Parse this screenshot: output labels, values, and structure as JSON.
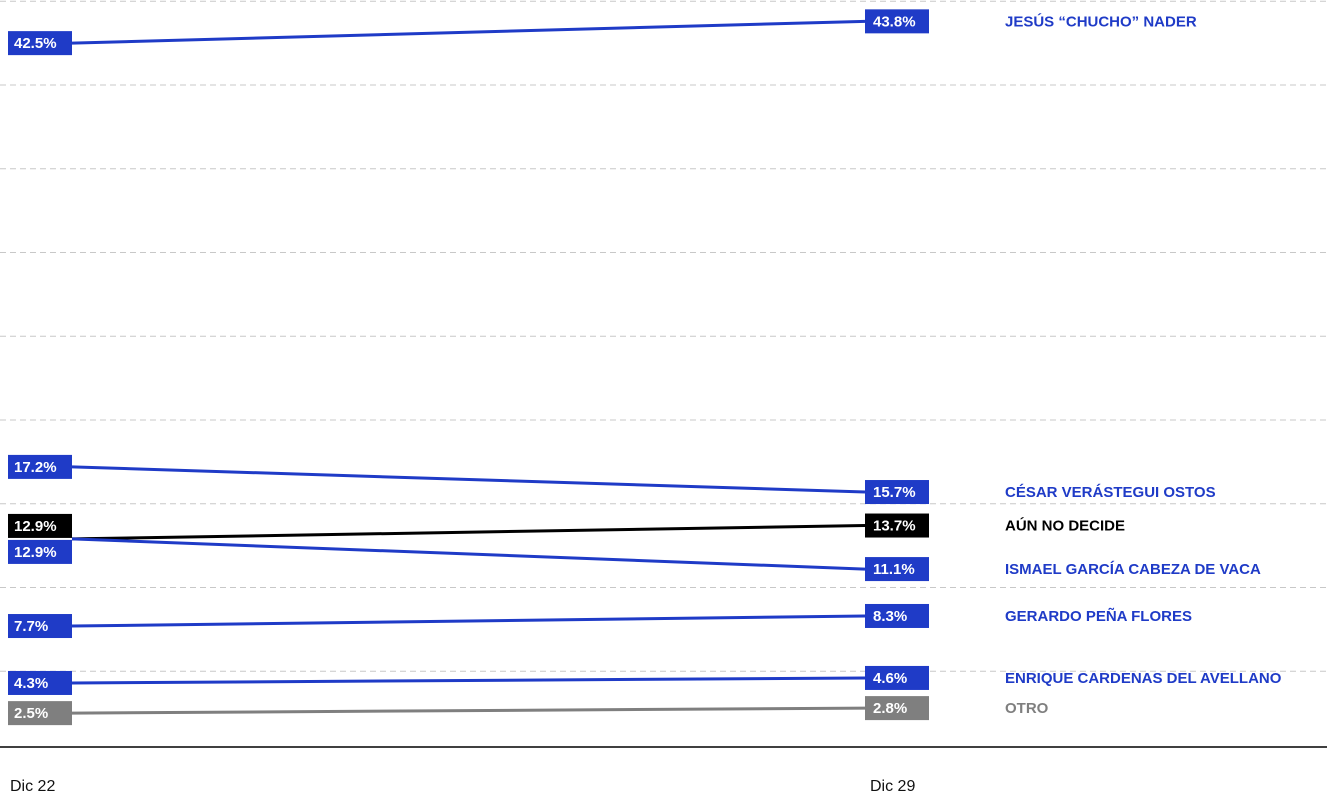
{
  "chart_data": {
    "type": "line",
    "categories": [
      "Dic 22",
      "Dic 29"
    ],
    "ylim": [
      0,
      45
    ],
    "yticks": [
      5,
      10,
      15,
      20,
      25,
      30,
      35,
      40,
      45
    ],
    "grid": true,
    "series": [
      {
        "name": "JESÚS “CHUCHO” NADER",
        "color": "#1f3bc7",
        "values": [
          42.5,
          43.8
        ],
        "value_labels": [
          "42.5%",
          "43.8%"
        ]
      },
      {
        "name": "CÉSAR VERÁSTEGUI OSTOS",
        "color": "#1f3bc7",
        "values": [
          17.2,
          15.7
        ],
        "value_labels": [
          "17.2%",
          "15.7%"
        ]
      },
      {
        "name": "AÚN NO DECIDE",
        "color": "#000000",
        "values": [
          12.9,
          13.7
        ],
        "value_labels": [
          "12.9%",
          "13.7%"
        ]
      },
      {
        "name": "ISMAEL  GARCÍA CABEZA DE VACA",
        "color": "#1f3bc7",
        "values": [
          12.9,
          11.1
        ],
        "value_labels": [
          "12.9%",
          "11.1%"
        ]
      },
      {
        "name": "GERARDO PEÑA FLORES",
        "color": "#1f3bc7",
        "values": [
          7.7,
          8.3
        ],
        "value_labels": [
          "7.7%",
          "8.3%"
        ]
      },
      {
        "name": "ENRIQUE CARDENAS DEL AVELLANO",
        "color": "#1f3bc7",
        "values": [
          4.3,
          4.6
        ],
        "value_labels": [
          "4.3%",
          "4.6%"
        ]
      },
      {
        "name": "OTRO",
        "color": "#7f7f7f",
        "values": [
          2.5,
          2.8
        ],
        "value_labels": [
          "2.5%",
          "2.8%"
        ]
      }
    ]
  }
}
